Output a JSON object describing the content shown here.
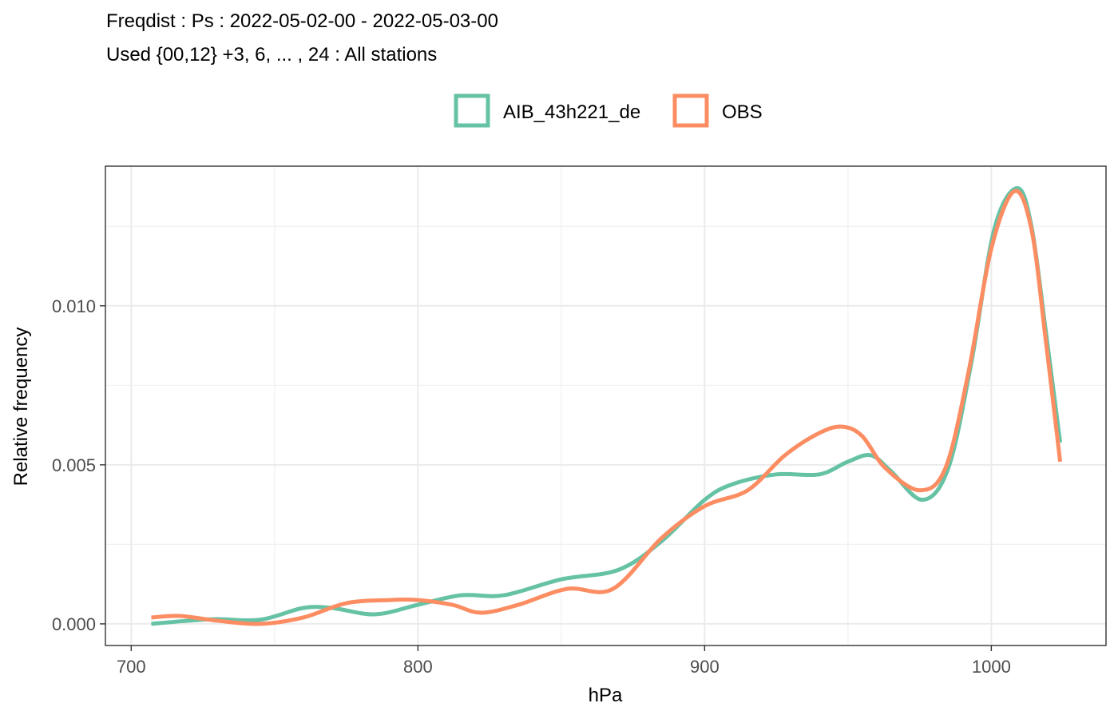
{
  "chart_data": {
    "type": "line",
    "title": "Freqdist : Ps : 2022-05-02-00 - 2022-05-03-00",
    "subtitle": "Used {00,12} +3, 6, ... , 24 : All stations",
    "xlabel": "hPa",
    "ylabel": "Relative frequency",
    "xlim": [
      691,
      1040
    ],
    "ylim": [
      -0.00068,
      0.01439
    ],
    "x_ticks": [
      700,
      800,
      900,
      1000
    ],
    "x_tick_labels": [
      "700",
      "800",
      "900",
      "1000"
    ],
    "y_ticks": [
      0.0,
      0.005,
      0.01
    ],
    "y_tick_labels": [
      "0.000",
      "0.005",
      "0.010"
    ],
    "grid": true,
    "legend_position": "top",
    "series": [
      {
        "name": "AIB_43h221_de",
        "color": "#66C2A5",
        "x": [
          707,
          720,
          730,
          745,
          760,
          770,
          785,
          800,
          815,
          830,
          850,
          870,
          885,
          900,
          910,
          925,
          940,
          950,
          958,
          965,
          976,
          985,
          993,
          1001,
          1009,
          1014,
          1019,
          1024
        ],
        "y": [
          0.0,
          0.0001,
          0.00015,
          0.00013,
          0.0005,
          0.0005,
          0.0003,
          0.0006,
          0.0009,
          0.0009,
          0.0014,
          0.0017,
          0.0026,
          0.0039,
          0.0044,
          0.0047,
          0.0047,
          0.0051,
          0.0053,
          0.0048,
          0.0039,
          0.0049,
          0.0082,
          0.0124,
          0.0137,
          0.0125,
          0.0092,
          0.0057
        ]
      },
      {
        "name": "OBS",
        "color": "#FC8D62",
        "x": [
          707,
          717,
          730,
          745,
          760,
          775,
          790,
          800,
          812,
          822,
          835,
          852,
          868,
          885,
          900,
          915,
          928,
          940,
          948,
          955,
          963,
          975,
          984,
          992,
          1000,
          1008,
          1014,
          1019,
          1024
        ],
        "y": [
          0.0002,
          0.00025,
          0.0001,
          0.0,
          0.0002,
          0.00065,
          0.00075,
          0.00075,
          0.0006,
          0.00035,
          0.0006,
          0.0011,
          0.0011,
          0.0027,
          0.0037,
          0.0042,
          0.0053,
          0.006,
          0.0062,
          0.0059,
          0.0049,
          0.0042,
          0.0049,
          0.0079,
          0.0118,
          0.0136,
          0.0124,
          0.0089,
          0.0051
        ]
      }
    ]
  }
}
